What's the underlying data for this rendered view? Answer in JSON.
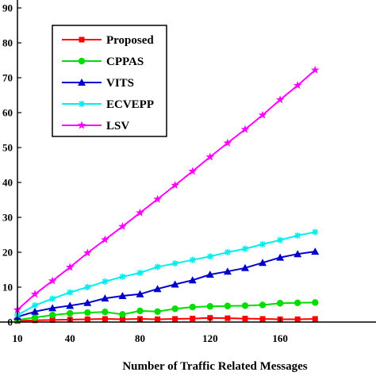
{
  "chart_data": {
    "type": "line",
    "xlabel": "Number of Traffic Related Messages",
    "ylabel": "",
    "xlim": [
      10,
      180
    ],
    "ylim": [
      0,
      95
    ],
    "x_ticks": [
      {
        "value": 10,
        "label": "10"
      },
      {
        "value": 40,
        "label": "40"
      },
      {
        "value": 80,
        "label": "80"
      },
      {
        "value": 120,
        "label": "120"
      },
      {
        "value": 160,
        "label": "160"
      }
    ],
    "y_ticks": [
      {
        "value": 0,
        "label": "0"
      },
      {
        "value": 10,
        "label": "10"
      },
      {
        "value": 20,
        "label": "20"
      },
      {
        "value": 30,
        "label": "30"
      },
      {
        "value": 40,
        "label": "40"
      },
      {
        "value": 50,
        "label": "50"
      },
      {
        "value": 60,
        "label": "60"
      },
      {
        "value": 70,
        "label": "70"
      },
      {
        "value": 80,
        "label": "80"
      },
      {
        "value": 90,
        "label": "90"
      }
    ],
    "legend_position": "top-left",
    "grid": false,
    "x": [
      10,
      20,
      30,
      40,
      50,
      60,
      70,
      80,
      90,
      100,
      110,
      120,
      130,
      140,
      150,
      160,
      170,
      180
    ],
    "series": [
      {
        "name": "Proposed",
        "color": "#ff0000",
        "marker": "square",
        "values": [
          0.3,
          0.5,
          0.6,
          0.7,
          0.8,
          0.9,
          0.8,
          0.9,
          0.8,
          0.9,
          1.0,
          1.2,
          1.1,
          1.0,
          0.9,
          0.8,
          0.8,
          0.9
        ]
      },
      {
        "name": "CPPAS",
        "color": "#00dd00",
        "marker": "circle",
        "values": [
          0.6,
          1.3,
          2.0,
          2.5,
          2.7,
          2.9,
          2.2,
          3.2,
          3.0,
          3.8,
          4.3,
          4.5,
          4.6,
          4.7,
          4.9,
          5.4,
          5.5,
          5.6
        ]
      },
      {
        "name": "VITS",
        "color": "#0000cc",
        "marker": "triangle",
        "values": [
          1.5,
          3.0,
          4.0,
          4.7,
          5.5,
          6.8,
          7.5,
          8.0,
          9.5,
          10.8,
          12.0,
          13.6,
          14.5,
          15.5,
          17.0,
          18.5,
          19.5,
          20.2
        ]
      },
      {
        "name": "ECVEPP",
        "color": "#00eeee",
        "marker": "asterisk",
        "values": [
          2.0,
          4.8,
          6.7,
          8.5,
          10.0,
          11.6,
          13.0,
          14.1,
          15.8,
          16.8,
          17.8,
          18.8,
          20.0,
          21.0,
          22.3,
          23.5,
          24.8,
          25.8
        ]
      },
      {
        "name": "LSV",
        "color": "#ff00ff",
        "marker": "star",
        "values": [
          3.5,
          8.0,
          11.8,
          15.7,
          19.8,
          23.6,
          27.4,
          31.3,
          35.2,
          39.2,
          43.2,
          47.3,
          51.3,
          55.2,
          59.3,
          63.7,
          67.8,
          72.2
        ]
      }
    ]
  }
}
